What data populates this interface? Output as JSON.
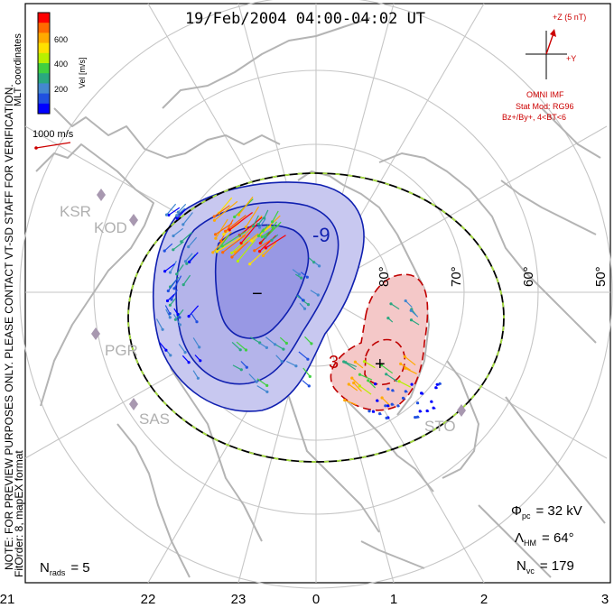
{
  "title": "19/Feb/2004 04:00-04:02 UT",
  "coordinates_label": "MLT coordinates",
  "colorbar": {
    "label": "Vel [m/s]",
    "ticks": [
      "600",
      "400",
      "200"
    ],
    "colors": [
      "#ff0000",
      "#ff6a00",
      "#ffaa00",
      "#ffe000",
      "#b8f000",
      "#40d040",
      "#2aa880",
      "#4488d0",
      "#2050e0",
      "#0000ff"
    ]
  },
  "scale_vector_label": "1000 m/s",
  "imf": {
    "z_label": "+Z (5 nT)",
    "y_label": "+Y",
    "source_label": "OMNI IMF",
    "stat_mod_line1": "Stat Mod: RG96",
    "stat_mod_line2": "Bz+/By+, 4<BT<6",
    "color": "#cc0000"
  },
  "radars": [
    "KSR",
    "KOD",
    "PGR",
    "SAS",
    "STO"
  ],
  "latitude_labels": [
    "80°",
    "70°",
    "60°",
    "50°"
  ],
  "mlt_labels": [
    "21",
    "22",
    "23",
    "0",
    "1",
    "2",
    "3"
  ],
  "contour_labels": {
    "minus_value": "-9",
    "minus_symbol": "−",
    "plus_value": "3",
    "plus_symbol": "+"
  },
  "stats": {
    "phi_symbol": "Φ",
    "phi_sub": "pc",
    "phi_value": "= 32 kV",
    "lambda_symbol": "Λ",
    "lambda_sub": "HM",
    "lambda_value": "= 64°",
    "nvc_symbol": "N",
    "nvc_sub": "vc",
    "nvc_value": "= 179",
    "nrads_symbol": "N",
    "nrads_sub": "rads",
    "nrads_value": "= 5"
  },
  "side_note_line1": "NOTE: FOR PREVIEW PURPOSES ONLY. PLEASE CONTACT VT-SD STAFF FOR VERIFICATION.",
  "side_note_line2": "FitOrder: 8, mapEX format",
  "colors": {
    "negative_cell_fill": "#c8c8f0",
    "negative_cell_core": "#9090e0",
    "negative_contour": "#1020b0",
    "positive_cell_fill": "#f4c8c8",
    "positive_contour": "#c00000",
    "coastline": "#b4b4b4",
    "grid": "#c0c0c0",
    "radar_marker": "#a898b0"
  }
}
